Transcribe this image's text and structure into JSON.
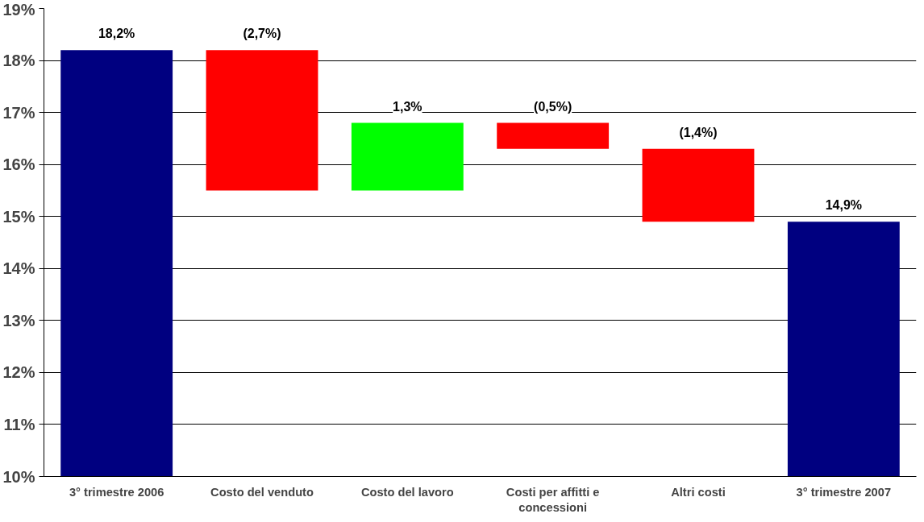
{
  "chart_data": {
    "type": "bar",
    "categories": [
      "3° trimestre 2006",
      "Costo del venduto",
      "Costo del lavoro",
      "Costi per affitti e concessioni",
      "Altri costi",
      "3° trimestre 2007"
    ],
    "values": [
      18.2,
      -2.7,
      1.3,
      -0.5,
      -1.4,
      14.9
    ],
    "base": [
      null,
      18.2,
      15.5,
      16.8,
      16.3,
      null
    ],
    "colors": [
      "#000080",
      "#ff0000",
      "#00ff00",
      "#ff0000",
      "#ff0000",
      "#000080"
    ],
    "value_labels": [
      "18,2%",
      "(2,7%)",
      "1,3%",
      "(0,5%)",
      "(1,4%)",
      "14,9%"
    ],
    "ylim": [
      10,
      19
    ],
    "yticks": [
      {
        "value": 10,
        "label": "10%"
      },
      {
        "value": 11,
        "label": "11%"
      },
      {
        "value": 12,
        "label": "12%"
      },
      {
        "value": 13,
        "label": "13%"
      },
      {
        "value": 14,
        "label": "14%"
      },
      {
        "value": 15,
        "label": "15%"
      },
      {
        "value": 16,
        "label": "16%"
      },
      {
        "value": 17,
        "label": "17%"
      },
      {
        "value": 18,
        "label": "18%"
      },
      {
        "value": 19,
        "label": "19%"
      }
    ],
    "grid": "y"
  }
}
